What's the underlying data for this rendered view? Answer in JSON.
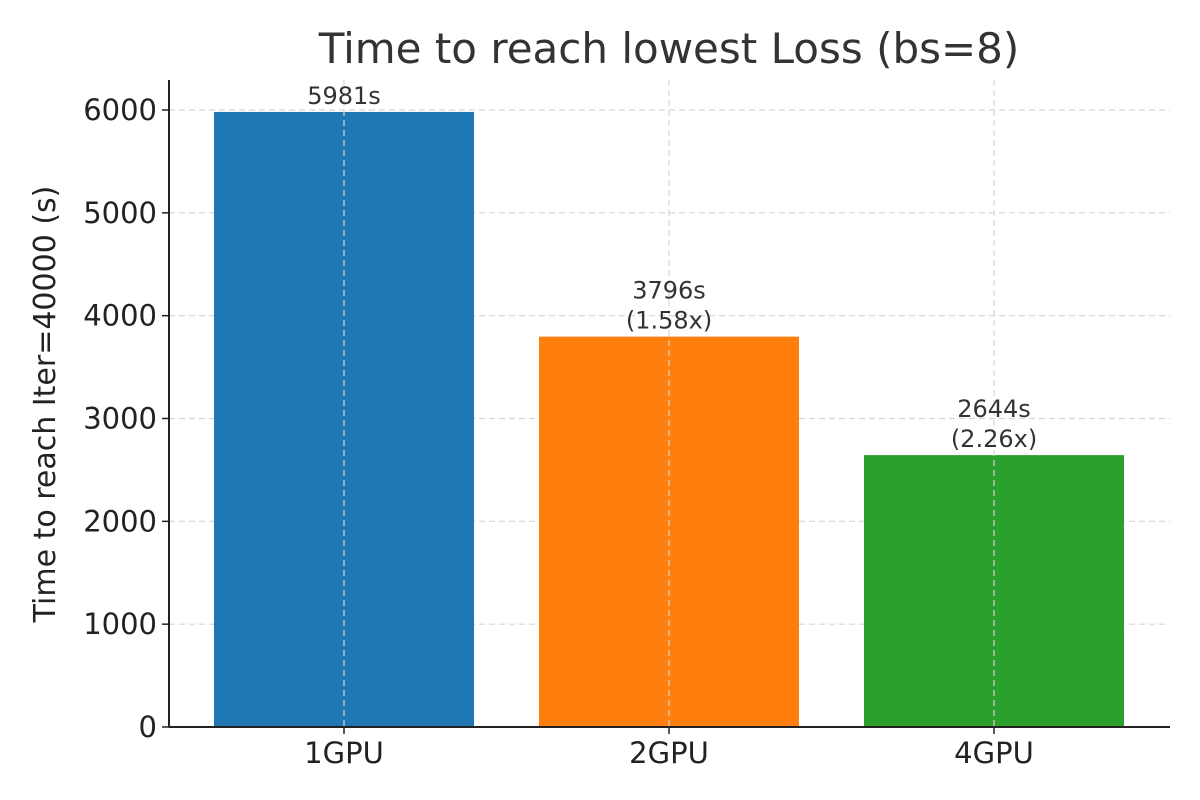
{
  "chart_data": {
    "type": "bar",
    "title": "Time to reach lowest Loss (bs=8)",
    "xlabel": "",
    "ylabel": "Time to reach Iter=40000 (s)",
    "categories": [
      "1GPU",
      "2GPU",
      "4GPU"
    ],
    "values": [
      5981,
      3796,
      2644
    ],
    "bar_labels": [
      [
        "5981s"
      ],
      [
        "3796s",
        "(1.58x)"
      ],
      [
        "2644s",
        "(2.26x)"
      ]
    ],
    "colors": [
      "#1f77b4",
      "#ff7f0e",
      "#2ca02c"
    ],
    "ylim": [
      0,
      6300
    ],
    "yticks": [
      0,
      1000,
      2000,
      3000,
      4000,
      5000,
      6000
    ],
    "ytick_labels": [
      "0",
      "1000",
      "2000",
      "3000",
      "4000",
      "5000",
      "6000"
    ],
    "grid": true,
    "legend": false
  }
}
